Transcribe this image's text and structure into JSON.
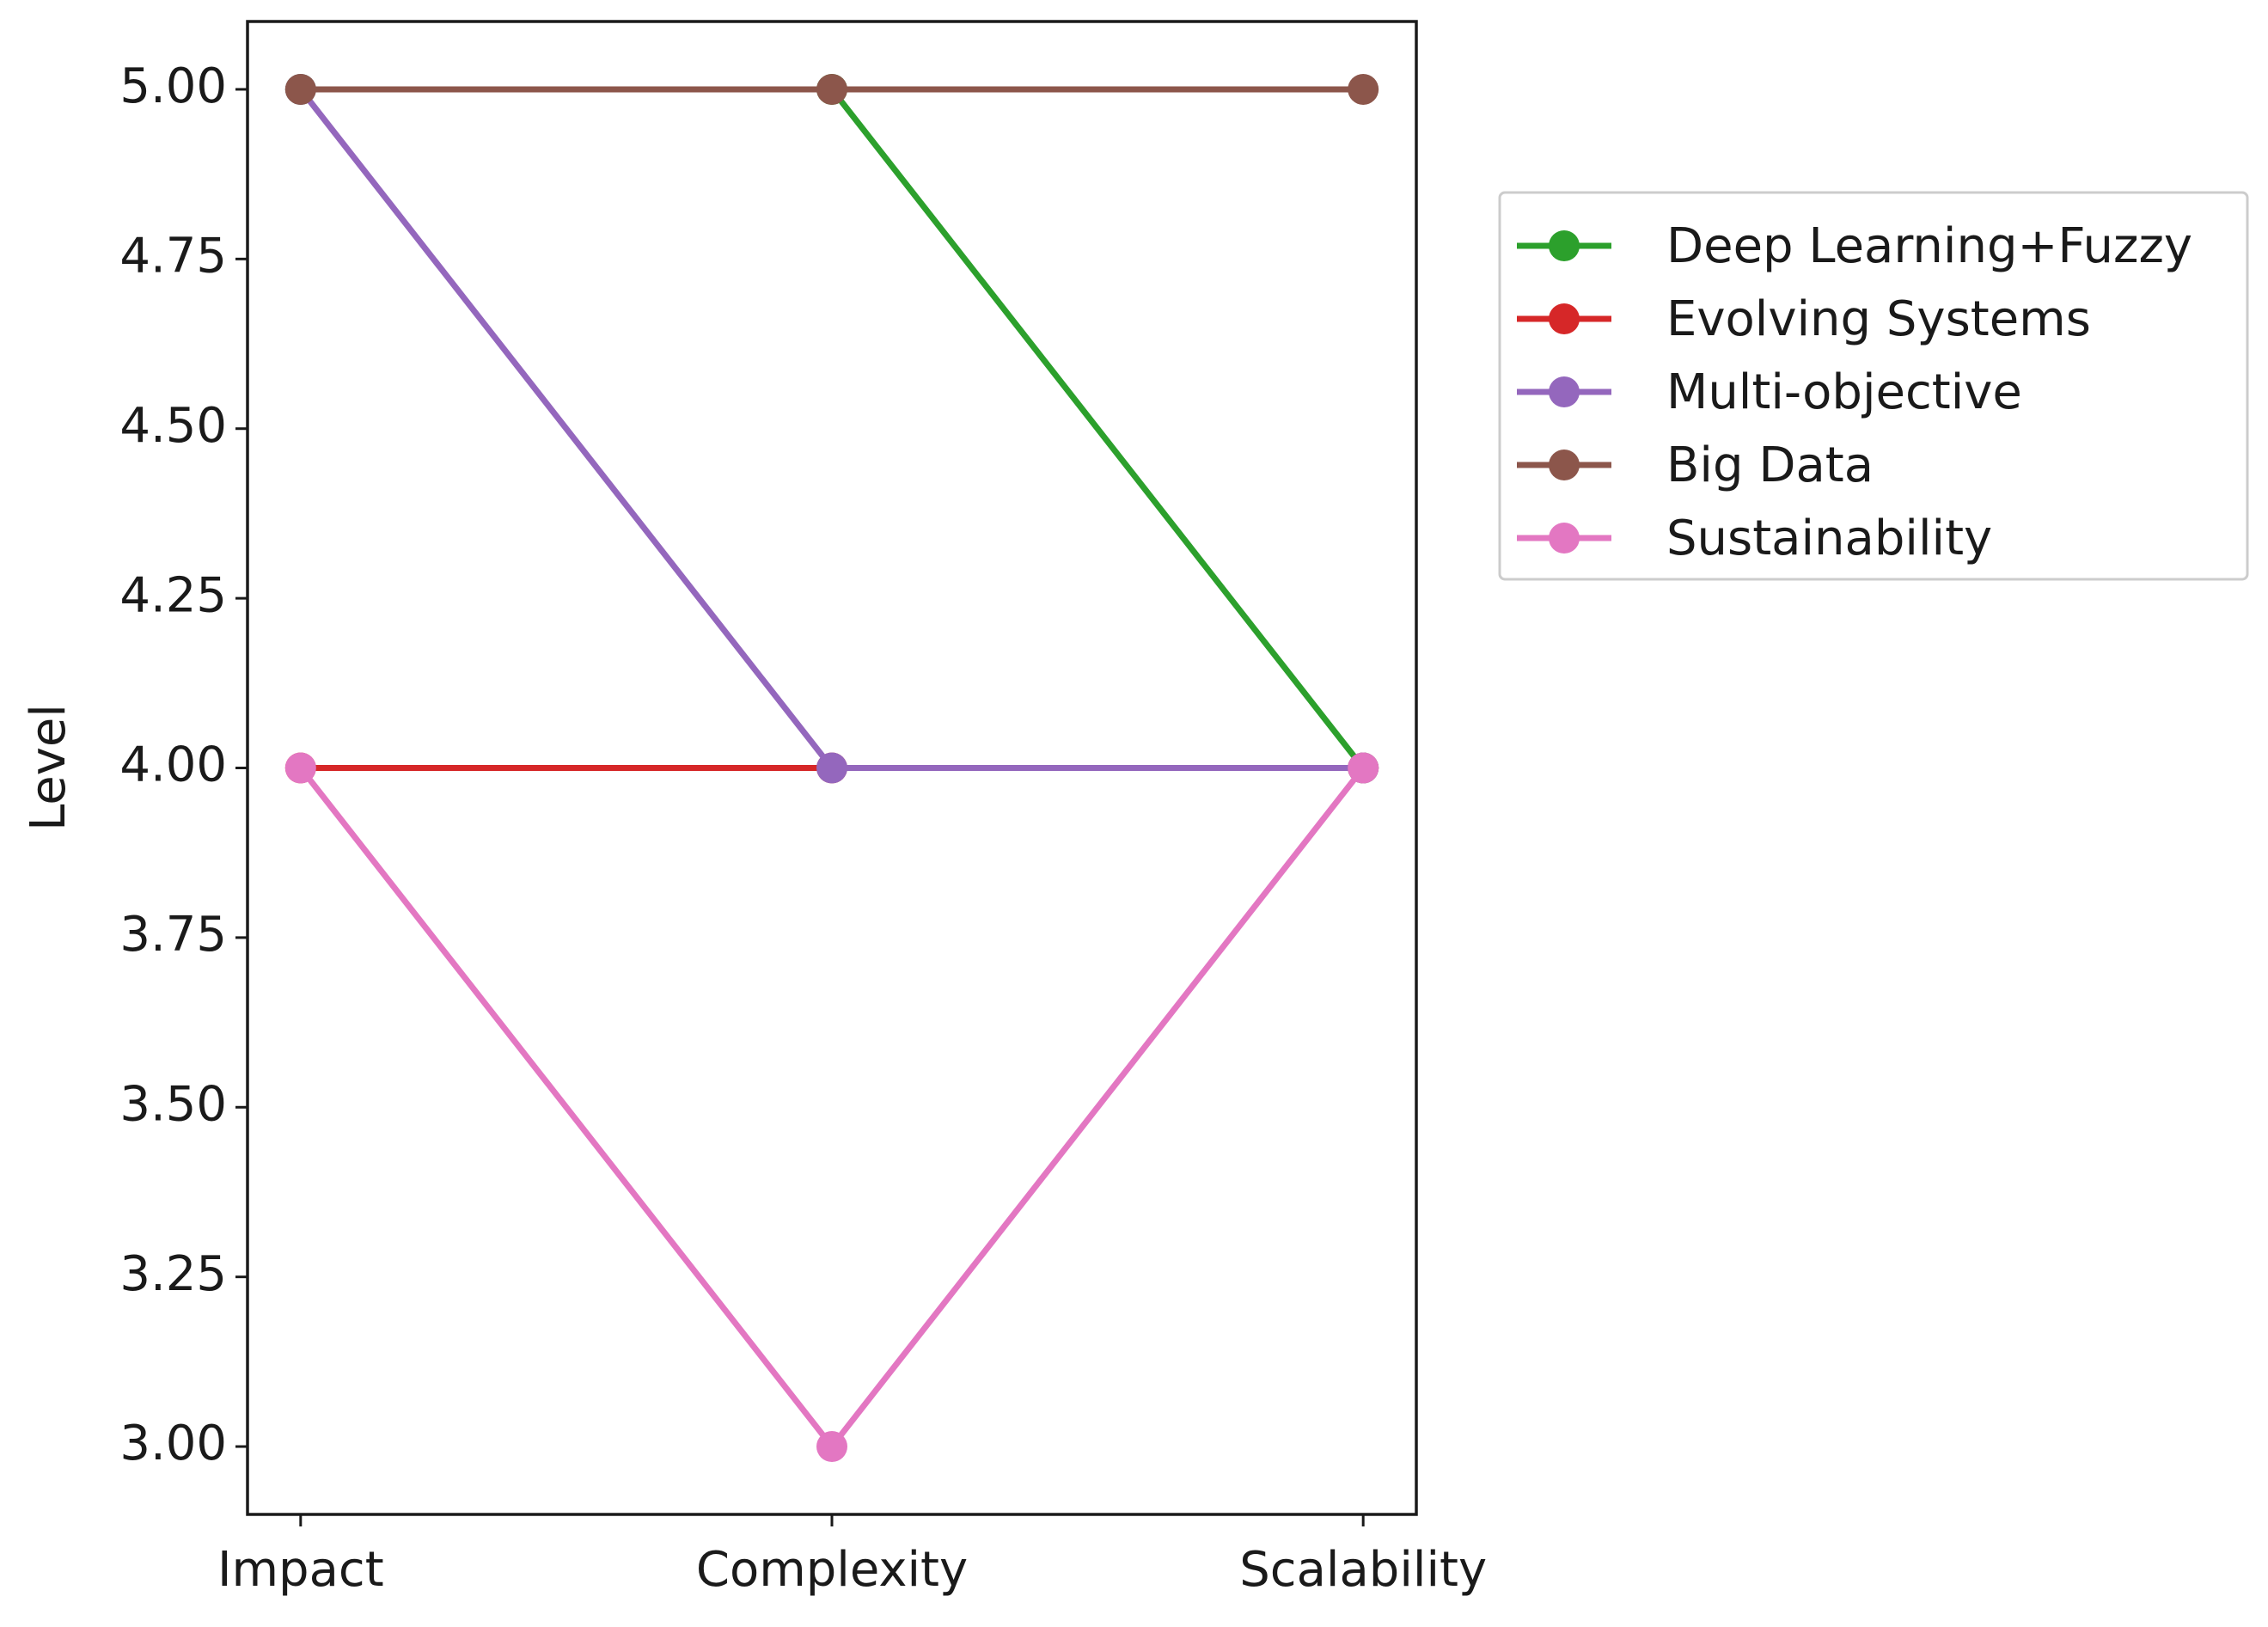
{
  "chart_data": {
    "type": "line",
    "y_label": "Level",
    "categories": [
      "Impact",
      "Complexity",
      "Scalability"
    ],
    "series": [
      {
        "name": "Deep Learning+Fuzzy",
        "color": "#2ca02c",
        "values": [
          5,
          5,
          4
        ]
      },
      {
        "name": "Evolving Systems",
        "color": "#d62728",
        "values": [
          4,
          4,
          4
        ]
      },
      {
        "name": "Multi-objective",
        "color": "#9467bd",
        "values": [
          5,
          4,
          4
        ]
      },
      {
        "name": "Big Data",
        "color": "#8c564b",
        "values": [
          5,
          5,
          5
        ]
      },
      {
        "name": "Sustainability",
        "color": "#e377c2",
        "values": [
          4,
          3,
          4
        ]
      }
    ],
    "ylim": [
      2.9,
      5.1
    ],
    "yticks": [
      {
        "value": 3,
        "label": "3.00"
      },
      {
        "value": 3.25,
        "label": "3.25"
      },
      {
        "value": 3.5,
        "label": "3.50"
      },
      {
        "value": 3.75,
        "label": "3.75"
      },
      {
        "value": 4,
        "label": "4.00"
      },
      {
        "value": 4.25,
        "label": "4.25"
      },
      {
        "value": 4.5,
        "label": "4.50"
      },
      {
        "value": 4.75,
        "label": "4.75"
      },
      {
        "value": 5,
        "label": "5.00"
      }
    ],
    "legend": "outside-upper-right",
    "grid": false
  }
}
